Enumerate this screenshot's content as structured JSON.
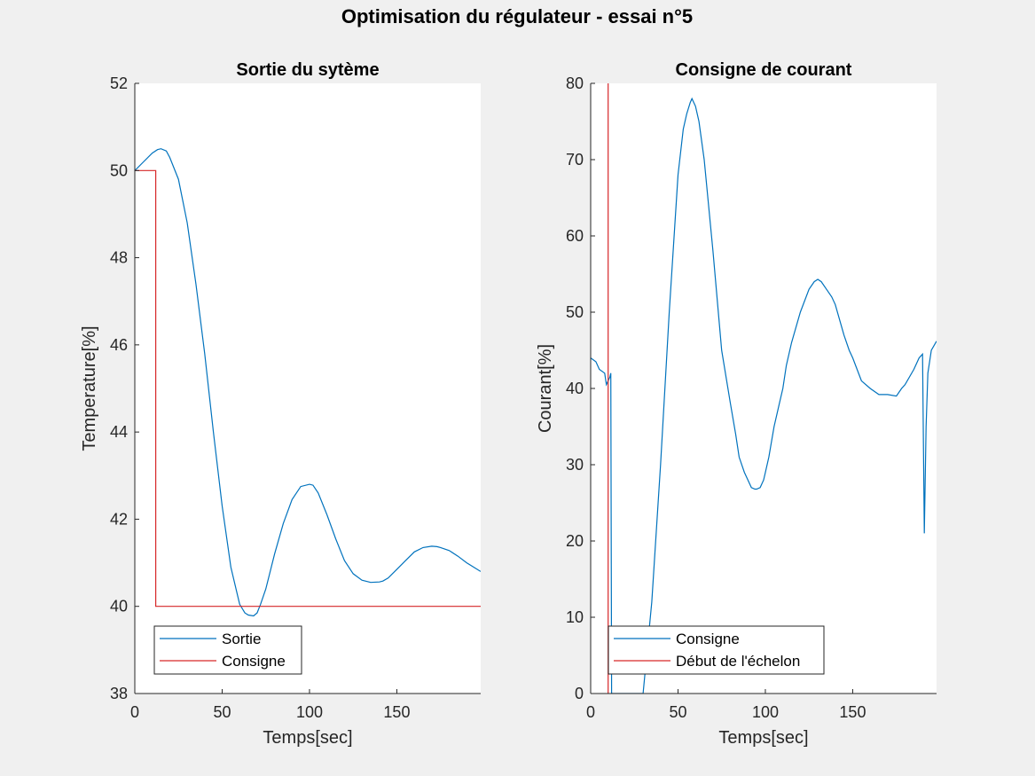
{
  "figure": {
    "title": "Optimisation du régulateur - essai n°5"
  },
  "colors": {
    "background": "#f0f0f0",
    "axes": "#ffffff",
    "series_blue": "#0072bd",
    "series_red": "#d62728"
  },
  "chart_data": [
    {
      "type": "line",
      "title": "Sortie du sytème",
      "xlabel": "Temps[sec]",
      "ylabel": "Temperature[%]",
      "xlim": [
        0,
        198
      ],
      "ylim": [
        38,
        52
      ],
      "xticks": [
        0,
        50,
        100,
        150
      ],
      "yticks": [
        38,
        40,
        42,
        44,
        46,
        48,
        50,
        52
      ],
      "legend_position": "bottom-left",
      "series": [
        {
          "name": "Sortie",
          "color": "#0072bd",
          "x": [
            0,
            5,
            10,
            13,
            15,
            18,
            20,
            25,
            30,
            35,
            40,
            45,
            50,
            55,
            60,
            63,
            65,
            68,
            70,
            72,
            75,
            80,
            85,
            90,
            95,
            100,
            102,
            105,
            110,
            115,
            120,
            125,
            130,
            135,
            140,
            142,
            145,
            150,
            155,
            160,
            165,
            170,
            173,
            175,
            180,
            185,
            190,
            198
          ],
          "y": [
            50.0,
            50.2,
            50.4,
            50.48,
            50.5,
            50.45,
            50.3,
            49.8,
            48.8,
            47.4,
            45.8,
            44.0,
            42.3,
            40.9,
            40.05,
            39.85,
            39.8,
            39.78,
            39.85,
            40.05,
            40.4,
            41.2,
            41.9,
            42.45,
            42.75,
            42.8,
            42.78,
            42.6,
            42.1,
            41.55,
            41.05,
            40.75,
            40.6,
            40.55,
            40.56,
            40.58,
            40.65,
            40.85,
            41.05,
            41.25,
            41.35,
            41.38,
            41.37,
            41.35,
            41.28,
            41.15,
            41.0,
            40.8
          ]
        },
        {
          "name": "Consigne",
          "color": "#d62728",
          "x": [
            0,
            12,
            12,
            198
          ],
          "y": [
            50,
            50,
            40,
            40
          ]
        }
      ]
    },
    {
      "type": "line",
      "title": "Consigne de courant",
      "xlabel": "Temps[sec]",
      "ylabel": "Courant[%]",
      "xlim": [
        0,
        198
      ],
      "ylim": [
        0,
        80
      ],
      "xticks": [
        0,
        50,
        100,
        150
      ],
      "yticks": [
        0,
        10,
        20,
        30,
        40,
        50,
        60,
        70,
        80
      ],
      "legend_position": "bottom-left",
      "series": [
        {
          "name": "Consigne",
          "color": "#0072bd",
          "x": [
            0,
            3,
            5,
            8,
            9,
            10,
            11,
            11.5,
            12,
            13,
            20,
            25,
            30,
            35,
            40,
            45,
            50,
            53,
            55,
            57,
            58,
            60,
            62,
            65,
            70,
            75,
            80,
            83,
            85,
            88,
            90,
            92,
            94,
            95,
            97,
            99,
            100,
            102,
            105,
            108,
            110,
            112,
            115,
            120,
            125,
            128,
            130,
            132,
            135,
            138,
            140,
            145,
            148,
            150,
            155,
            160,
            165,
            170,
            175,
            178,
            180,
            185,
            188,
            190,
            191,
            192,
            193,
            195,
            198
          ],
          "y": [
            44,
            43.5,
            42.5,
            42,
            40.5,
            41,
            41.5,
            42,
            0,
            0,
            0,
            0,
            0,
            12,
            30,
            50,
            68,
            74,
            76,
            77.5,
            78,
            77,
            75,
            70,
            58,
            45,
            38,
            34,
            31,
            29,
            28,
            27,
            26.8,
            26.8,
            27,
            28,
            29,
            31,
            35,
            38,
            40,
            43,
            46,
            50,
            53,
            54,
            54.3,
            54,
            53,
            52,
            51,
            47,
            45,
            44,
            41,
            40,
            39.2,
            39.2,
            39,
            40,
            40.5,
            42.5,
            44,
            44.5,
            21,
            35,
            42,
            45,
            46.2
          ]
        },
        {
          "name": "Début de l'échelon",
          "color": "#d62728",
          "x": [
            10,
            10
          ],
          "y": [
            0,
            80
          ]
        }
      ]
    }
  ]
}
